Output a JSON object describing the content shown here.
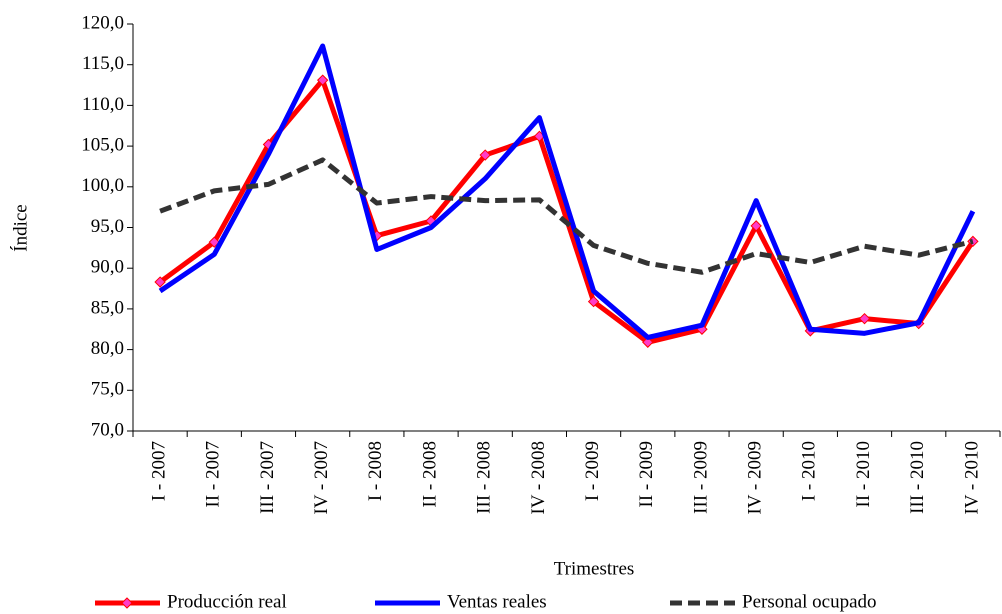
{
  "chart_data": {
    "type": "line",
    "ylabel": "Índice",
    "xlabel": "Trimestres",
    "categories": [
      "I - 2007",
      "II - 2007",
      "III - 2007",
      "IV - 2007",
      "I - 2008",
      "II - 2008",
      "III - 2008",
      "IV - 2008",
      "I - 2009",
      "II - 2009",
      "III - 2009",
      "IV - 2009",
      "I - 2010",
      "II - 2010",
      "III - 2010",
      "IV - 2010"
    ],
    "series": [
      {
        "name": "Producción real",
        "color": "#ff0000",
        "marker": "diamond",
        "marker_color": "#ff3cc8",
        "style": "solid",
        "values": [
          88.3,
          93.2,
          105.2,
          113.1,
          94.0,
          95.8,
          103.9,
          106.2,
          85.9,
          80.9,
          82.5,
          95.2,
          82.3,
          83.8,
          83.2,
          93.3
        ]
      },
      {
        "name": "Ventas reales",
        "color": "#0000ff",
        "style": "solid",
        "values": [
          87.2,
          91.7,
          104.0,
          117.3,
          92.3,
          95.0,
          101.0,
          108.5,
          87.2,
          81.5,
          83.0,
          98.3,
          82.5,
          82.0,
          83.3,
          97.0
        ]
      },
      {
        "name": "Personal ocupado",
        "color": "#333333",
        "style": "dashed",
        "values": [
          97.0,
          99.5,
          100.3,
          103.3,
          98.0,
          98.8,
          98.3,
          98.4,
          92.8,
          90.6,
          89.5,
          91.8,
          90.7,
          92.7,
          91.6,
          93.3
        ]
      }
    ],
    "ylim": [
      70,
      120
    ],
    "yticks": [
      {
        "value": 70,
        "label": "70,0"
      },
      {
        "value": 75,
        "label": "75,0"
      },
      {
        "value": 80,
        "label": "80,0"
      },
      {
        "value": 85,
        "label": "85,0"
      },
      {
        "value": 90,
        "label": "90,0"
      },
      {
        "value": 95,
        "label": "95,0"
      },
      {
        "value": 100,
        "label": "100,0"
      },
      {
        "value": 105,
        "label": "105,0"
      },
      {
        "value": 110,
        "label": "110,0"
      },
      {
        "value": 115,
        "label": "115,0"
      },
      {
        "value": 120,
        "label": "120,0"
      }
    ],
    "legend": "bottom"
  }
}
